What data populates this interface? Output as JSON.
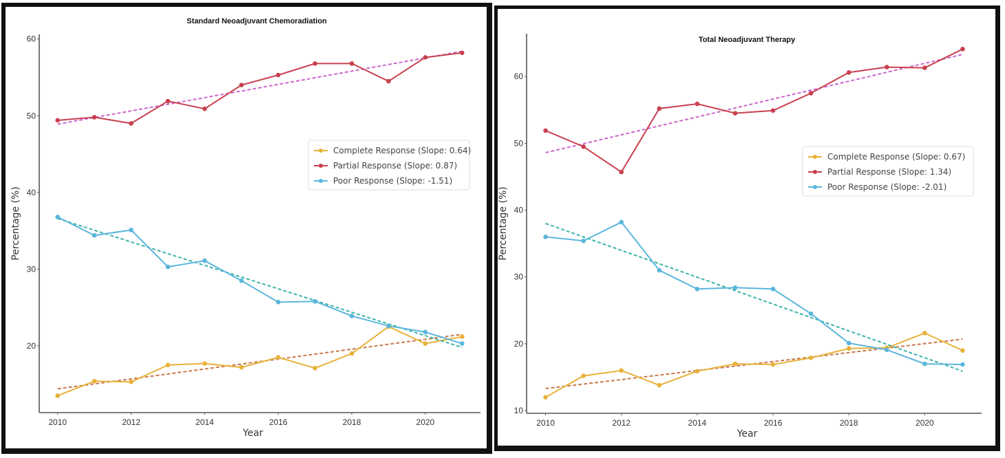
{
  "chart_data": [
    {
      "type": "line",
      "title": "Standard Neoadjuvant Chemoradiation",
      "xlabel": "Year",
      "ylabel": "Percentage (%)",
      "x": [
        2010,
        2011,
        2012,
        2013,
        2014,
        2015,
        2016,
        2017,
        2018,
        2019,
        2020,
        2021
      ],
      "xticks": [
        2010,
        2012,
        2014,
        2016,
        2018,
        2020
      ],
      "yticks": [
        20,
        30,
        40,
        50,
        60
      ],
      "xlim": [
        2009.5,
        2021.5
      ],
      "ylim": [
        11.3,
        60.6
      ],
      "grid": false,
      "legend_position": "center-right",
      "series": [
        {
          "name": "Complete Response (Slope: 0.64)",
          "color": "#e8b23a",
          "trend_color": "#c8794a",
          "values": [
            13.5,
            15.4,
            15.3,
            17.5,
            17.7,
            17.2,
            18.5,
            17.1,
            19.0,
            22.5,
            20.3,
            21.2
          ],
          "trend": [
            14.4,
            21.5
          ]
        },
        {
          "name": "Partial Response (Slope: 0.87)",
          "color": "#c8404f",
          "trend_color": "#cc66cc",
          "values": [
            49.4,
            49.8,
            49.0,
            51.9,
            50.9,
            54.0,
            55.3,
            56.8,
            56.8,
            54.5,
            57.6,
            58.2
          ],
          "trend": [
            48.9,
            58.4
          ]
        },
        {
          "name": "Poor Response (Slope: -1.51)",
          "color": "#5bb6dc",
          "trend_color": "#3bb3a8",
          "values": [
            36.8,
            34.4,
            35.1,
            30.3,
            31.1,
            28.5,
            25.7,
            25.8,
            23.9,
            22.6,
            21.8,
            20.3
          ],
          "trend": [
            36.6,
            19.8
          ]
        }
      ]
    },
    {
      "type": "line",
      "title": "Total Neoadjuvant Therapy",
      "xlabel": "Year",
      "ylabel": "Percentage (%)",
      "x": [
        2010,
        2011,
        2012,
        2013,
        2014,
        2015,
        2016,
        2017,
        2018,
        2019,
        2020,
        2021
      ],
      "xticks": [
        2010,
        2012,
        2014,
        2016,
        2018,
        2020
      ],
      "yticks": [
        10,
        20,
        30,
        40,
        50,
        60
      ],
      "xlim": [
        2009.5,
        2021.5
      ],
      "ylim": [
        9.6,
        66.4
      ],
      "grid": false,
      "legend_position": "center-right",
      "series": [
        {
          "name": "Complete Response (Slope: 0.67)",
          "color": "#e8b23a",
          "trend_color": "#c8794a",
          "values": [
            12.0,
            15.2,
            16.0,
            13.8,
            15.9,
            17.0,
            16.9,
            17.9,
            19.3,
            19.4,
            21.6,
            19.0
          ],
          "trend": [
            13.3,
            20.7
          ]
        },
        {
          "name": "Partial Response (Slope: 1.34)",
          "color": "#c8404f",
          "trend_color": "#cc66cc",
          "values": [
            51.9,
            49.5,
            45.7,
            55.2,
            55.9,
            54.5,
            54.9,
            57.5,
            60.6,
            61.4,
            61.3,
            64.1
          ],
          "trend": [
            48.6,
            63.3
          ]
        },
        {
          "name": "Poor Response (Slope: -2.01)",
          "color": "#5bb6dc",
          "trend_color": "#3bb3a8",
          "values": [
            36.0,
            35.4,
            38.2,
            31.0,
            28.2,
            28.4,
            28.2,
            24.5,
            20.1,
            19.1,
            17.0,
            16.9
          ],
          "trend": [
            38.0,
            15.9
          ]
        }
      ]
    }
  ]
}
